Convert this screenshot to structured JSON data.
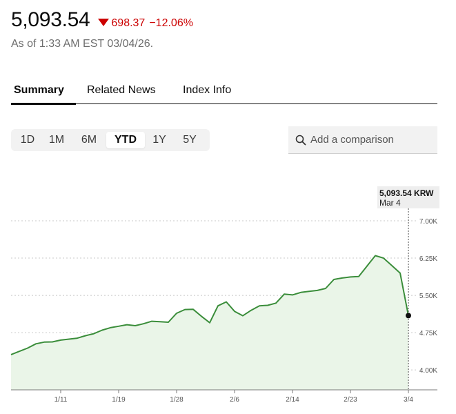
{
  "quote": {
    "price": "5,093.54",
    "change": "698.37",
    "change_pct": "−12.06%",
    "as_of": "As of 1:33 AM EST 03/04/26.",
    "direction_color": "#cc0000"
  },
  "tabs": [
    {
      "label": "Summary",
      "active": true
    },
    {
      "label": "Related News",
      "active": false
    },
    {
      "label": "Index Info",
      "active": false
    }
  ],
  "ranges": [
    {
      "label": "1D",
      "active": false
    },
    {
      "label": "1M",
      "active": false
    },
    {
      "label": "6M",
      "active": false
    },
    {
      "label": "YTD",
      "active": true
    },
    {
      "label": "1Y",
      "active": false
    },
    {
      "label": "5Y",
      "active": false
    }
  ],
  "comparison": {
    "placeholder": "Add a comparison",
    "icon": "search-icon"
  },
  "tooltip": {
    "value": "5,093.54 KRW",
    "date": "Mar 4"
  },
  "chart_data": {
    "type": "area",
    "line_color": "#3a8d3a",
    "fill_color": "#eaf5e8",
    "ylim": [
      3600,
      7250
    ],
    "y_ticks": [
      {
        "value": 7000,
        "label": "7.00K"
      },
      {
        "value": 6250,
        "label": "6.25K"
      },
      {
        "value": 5500,
        "label": "5.50K"
      },
      {
        "value": 4750,
        "label": "4.75K"
      },
      {
        "value": 4000,
        "label": "4.00K"
      }
    ],
    "x_ticks": [
      {
        "label": "1/11",
        "index": 6
      },
      {
        "label": "1/19",
        "index": 13
      },
      {
        "label": "1/28",
        "index": 20
      },
      {
        "label": "2/6",
        "index": 27
      },
      {
        "label": "2/14",
        "index": 34
      },
      {
        "label": "2/23",
        "index": 41
      },
      {
        "label": "3/4",
        "index": 48
      }
    ],
    "x_count": 49,
    "grid": true,
    "series": [
      {
        "values": [
          4309,
          4375,
          4440,
          4525,
          4560,
          4565,
          4600,
          4620,
          4640,
          4690,
          4730,
          4800,
          4850,
          4880,
          4910,
          4890,
          4930,
          4980,
          4970,
          4960,
          5140,
          5215,
          5220,
          5080,
          4950,
          5290,
          5370,
          5180,
          5090,
          5200,
          5290,
          5300,
          5345,
          5525,
          5510,
          5560,
          5580,
          5600,
          5640,
          5820,
          5850,
          5870,
          5880,
          6090,
          6300,
          6250,
          6100,
          5950,
          5093.54
        ]
      }
    ],
    "highlight": {
      "index": 48,
      "value": 5093.54
    }
  }
}
